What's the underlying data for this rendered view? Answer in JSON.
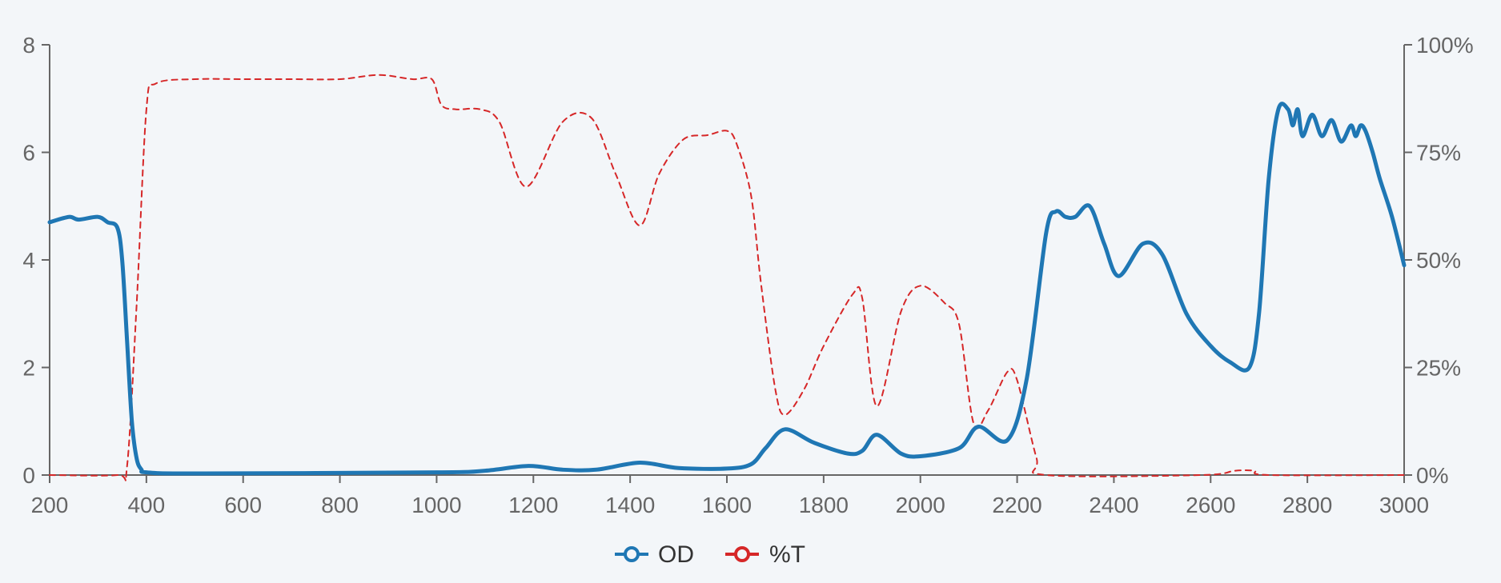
{
  "chart_data": {
    "type": "line",
    "title": "",
    "x": [
      200,
      300,
      340,
      360,
      380,
      400,
      500,
      1000,
      1100,
      1190,
      1300,
      1420,
      1500,
      1600,
      1660,
      1720,
      1800,
      1880,
      1910,
      1960,
      2000,
      2080,
      2120,
      2180,
      2220,
      2260,
      2300,
      2320,
      2350,
      2400,
      2460,
      2500,
      2550,
      2600,
      2640,
      2680,
      2700,
      2730,
      2750,
      2770,
      2790,
      2810,
      2830,
      2850,
      2870,
      2900,
      2920,
      2950,
      3000
    ],
    "xlim": [
      200,
      3000
    ],
    "xticks": [
      "200",
      "400",
      "600",
      "800",
      "1000",
      "1200",
      "1400",
      "1600",
      "1800",
      "2000",
      "2200",
      "2400",
      "2600",
      "2800",
      "3000"
    ],
    "y_left": {
      "ticks": [
        "0",
        "2",
        "4",
        "6",
        "8"
      ],
      "lim": [
        0,
        8
      ]
    },
    "y_right": {
      "ticks": [
        "0%",
        "25%",
        "50%",
        "75%",
        "100%"
      ],
      "lim": [
        0,
        100
      ]
    },
    "series": [
      {
        "name": "OD",
        "axis": "left",
        "color": "#1f77b4",
        "style": "solid",
        "x": [
          200,
          240,
          260,
          300,
          320,
          340,
          350,
          360,
          370,
          380,
          390,
          400,
          500,
          1000,
          1100,
          1190,
          1260,
          1330,
          1420,
          1500,
          1600,
          1650,
          1680,
          1720,
          1780,
          1850,
          1880,
          1910,
          1960,
          2000,
          2080,
          2120,
          2180,
          2220,
          2260,
          2280,
          2300,
          2320,
          2350,
          2380,
          2410,
          2460,
          2500,
          2550,
          2600,
          2640,
          2680,
          2700,
          2720,
          2740,
          2760,
          2770,
          2780,
          2790,
          2810,
          2830,
          2850,
          2870,
          2890,
          2900,
          2910,
          2920,
          2935,
          2950,
          2975,
          3000
        ],
        "values": [
          4.7,
          4.8,
          4.75,
          4.8,
          4.7,
          4.6,
          4.0,
          2.5,
          1.0,
          0.3,
          0.1,
          0.05,
          0.03,
          0.05,
          0.08,
          0.17,
          0.1,
          0.1,
          0.23,
          0.13,
          0.12,
          0.2,
          0.5,
          0.85,
          0.6,
          0.4,
          0.45,
          0.75,
          0.4,
          0.35,
          0.5,
          0.9,
          0.65,
          1.8,
          4.5,
          4.9,
          4.8,
          4.8,
          5.0,
          4.3,
          3.7,
          4.3,
          4.1,
          3.0,
          2.4,
          2.1,
          2.0,
          3.0,
          5.5,
          6.8,
          6.8,
          6.5,
          6.8,
          6.3,
          6.7,
          6.3,
          6.6,
          6.2,
          6.5,
          6.3,
          6.5,
          6.4,
          6.0,
          5.5,
          4.8,
          3.9
        ]
      },
      {
        "name": "%T",
        "axis": "right",
        "color": "#d62728",
        "style": "dashed",
        "x": [
          200,
          340,
          360,
          380,
          400,
          420,
          500,
          600,
          700,
          800,
          880,
          950,
          990,
          1010,
          1040,
          1090,
          1130,
          1185,
          1260,
          1320,
          1370,
          1420,
          1460,
          1510,
          1560,
          1600,
          1620,
          1650,
          1670,
          1700,
          1720,
          1760,
          1800,
          1860,
          1880,
          1910,
          1960,
          2000,
          2050,
          2080,
          2110,
          2140,
          2180,
          2200,
          2240,
          2260,
          2580,
          2650,
          2690,
          2720,
          3000
        ],
        "values": [
          0,
          0,
          2,
          40,
          85,
          91,
          92,
          92,
          92,
          92,
          93,
          92,
          92,
          86,
          85,
          85,
          82,
          67,
          82,
          83,
          70,
          58,
          70,
          78,
          79,
          80,
          77,
          65,
          45,
          20,
          14,
          20,
          30,
          42,
          41,
          16,
          38,
          44,
          40,
          35,
          12,
          15,
          24,
          22,
          4,
          0,
          0,
          1,
          1,
          0,
          0
        ]
      }
    ],
    "legend": {
      "placement": "bottom-center",
      "items": [
        "OD",
        "%T"
      ]
    },
    "grid": false
  }
}
